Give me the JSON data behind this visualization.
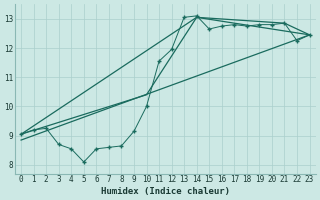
{
  "xlabel": "Humidex (Indice chaleur)",
  "bg_color": "#cce8e4",
  "line_color": "#1a6b5e",
  "grid_color": "#aacfcc",
  "xlim": [
    -0.5,
    23.5
  ],
  "ylim": [
    7.7,
    13.5
  ],
  "xticks": [
    0,
    1,
    2,
    3,
    4,
    5,
    6,
    7,
    8,
    9,
    10,
    11,
    12,
    13,
    14,
    15,
    16,
    17,
    18,
    19,
    20,
    21,
    22,
    23
  ],
  "yticks": [
    8,
    9,
    10,
    11,
    12,
    13
  ],
  "zigzag_x": [
    0,
    1,
    2,
    3,
    4,
    5,
    6,
    7,
    8,
    9,
    10,
    11,
    12,
    13,
    14,
    15,
    16,
    17,
    18,
    19,
    20,
    21,
    22,
    23
  ],
  "zigzag_y": [
    9.05,
    9.2,
    9.25,
    8.7,
    8.55,
    8.1,
    8.55,
    8.6,
    8.65,
    9.15,
    10.0,
    11.55,
    11.95,
    13.05,
    13.1,
    12.65,
    12.75,
    12.8,
    12.75,
    12.8,
    12.8,
    12.85,
    12.25,
    12.45
  ],
  "line1_x": [
    0,
    23
  ],
  "line1_y": [
    8.85,
    12.45
  ],
  "line2_x": [
    0,
    14,
    23
  ],
  "line2_y": [
    9.05,
    13.05,
    12.45
  ],
  "line3_x": [
    0,
    10,
    14,
    21,
    23
  ],
  "line3_y": [
    9.05,
    10.4,
    13.05,
    12.85,
    12.45
  ]
}
